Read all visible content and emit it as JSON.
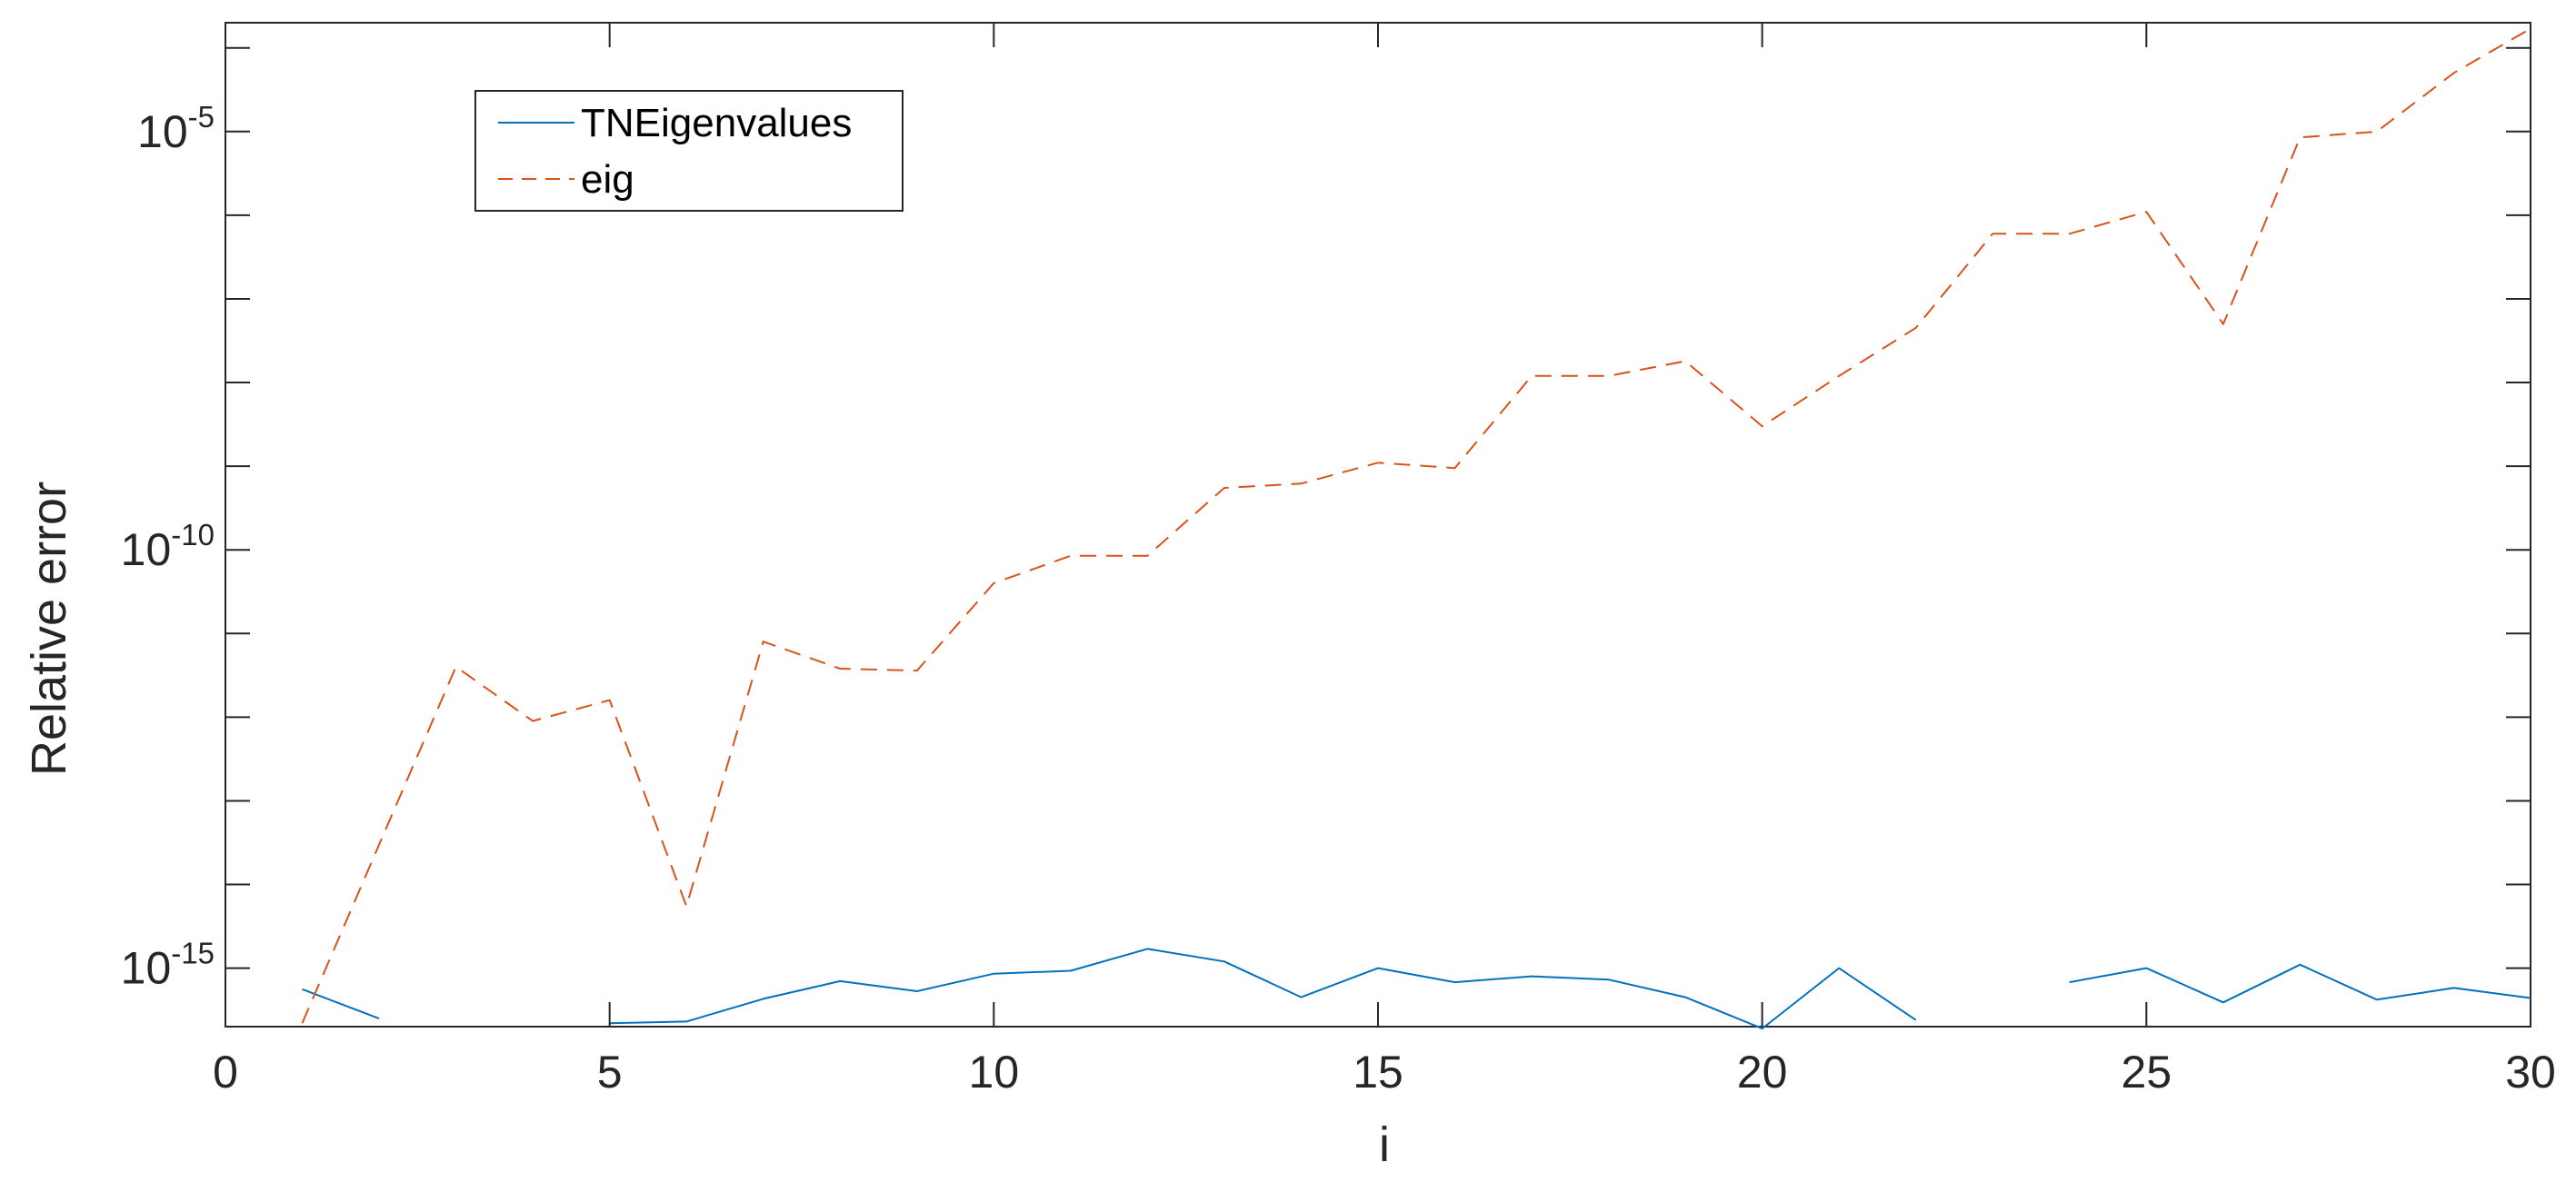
{
  "colors": {
    "axis": "#262626",
    "series_1": "#0072BD",
    "series_2": "#D95319"
  },
  "chart_data": {
    "type": "line",
    "xlabel": "i",
    "ylabel": "Relative error",
    "xlim": [
      0,
      30
    ],
    "ylim": [
      2e-16,
      0.0002
    ],
    "y_scale": "log",
    "grid": false,
    "box": true,
    "legend_position": "top-left",
    "x_ticks": [
      0,
      5,
      10,
      15,
      20,
      25,
      30
    ],
    "y_ticks": [
      {
        "value": 1e-15,
        "base": "10",
        "exponent": "-15"
      },
      {
        "value": 1e-10,
        "base": "10",
        "exponent": "-10"
      },
      {
        "value": 1e-05,
        "base": "10",
        "exponent": "-5"
      }
    ],
    "series": [
      {
        "name": "TNEigenvalues",
        "style": "solid",
        "x": [
          1,
          2,
          3,
          4,
          5,
          6,
          7,
          8,
          9,
          10,
          11,
          12,
          13,
          14,
          15,
          16,
          17,
          18,
          19,
          20,
          21,
          22,
          23,
          24,
          25,
          26,
          27,
          28,
          29,
          30
        ],
        "y": [
          5.6e-16,
          2.5e-16,
          null,
          null,
          2.2e-16,
          2.3e-16,
          4.3e-16,
          7e-16,
          5.3e-16,
          8.6e-16,
          9.3e-16,
          1.7e-15,
          1.2e-15,
          4.5e-16,
          1e-15,
          6.8e-16,
          8e-16,
          7.3e-16,
          4.5e-16,
          1.9e-16,
          1e-15,
          2.4e-16,
          null,
          6.8e-16,
          1e-15,
          3.9e-16,
          1.1e-15,
          4.2e-16,
          5.8e-16,
          4.4e-16
        ]
      },
      {
        "name": "eig",
        "style": "dashed",
        "x": [
          1,
          2,
          3,
          4,
          5,
          6,
          7,
          8,
          9,
          10,
          11,
          12,
          13,
          14,
          15,
          16,
          17,
          18,
          19,
          20,
          21,
          22,
          23,
          24,
          25,
          26,
          27,
          28,
          29,
          30
        ],
        "y": [
          2.2e-16,
          3e-14,
          4e-12,
          9e-13,
          1.6e-12,
          5.5e-15,
          8e-12,
          3.8e-12,
          3.6e-12,
          4e-11,
          8.5e-11,
          8.5e-11,
          5.5e-10,
          6.2e-10,
          1.1e-09,
          9.5e-10,
          1.2e-08,
          1.2e-08,
          1.8e-08,
          3e-09,
          1.2e-08,
          4.5e-08,
          6e-07,
          6e-07,
          1.1e-06,
          5e-08,
          8.5e-06,
          1e-05,
          5e-05,
          0.00017
        ]
      }
    ]
  }
}
